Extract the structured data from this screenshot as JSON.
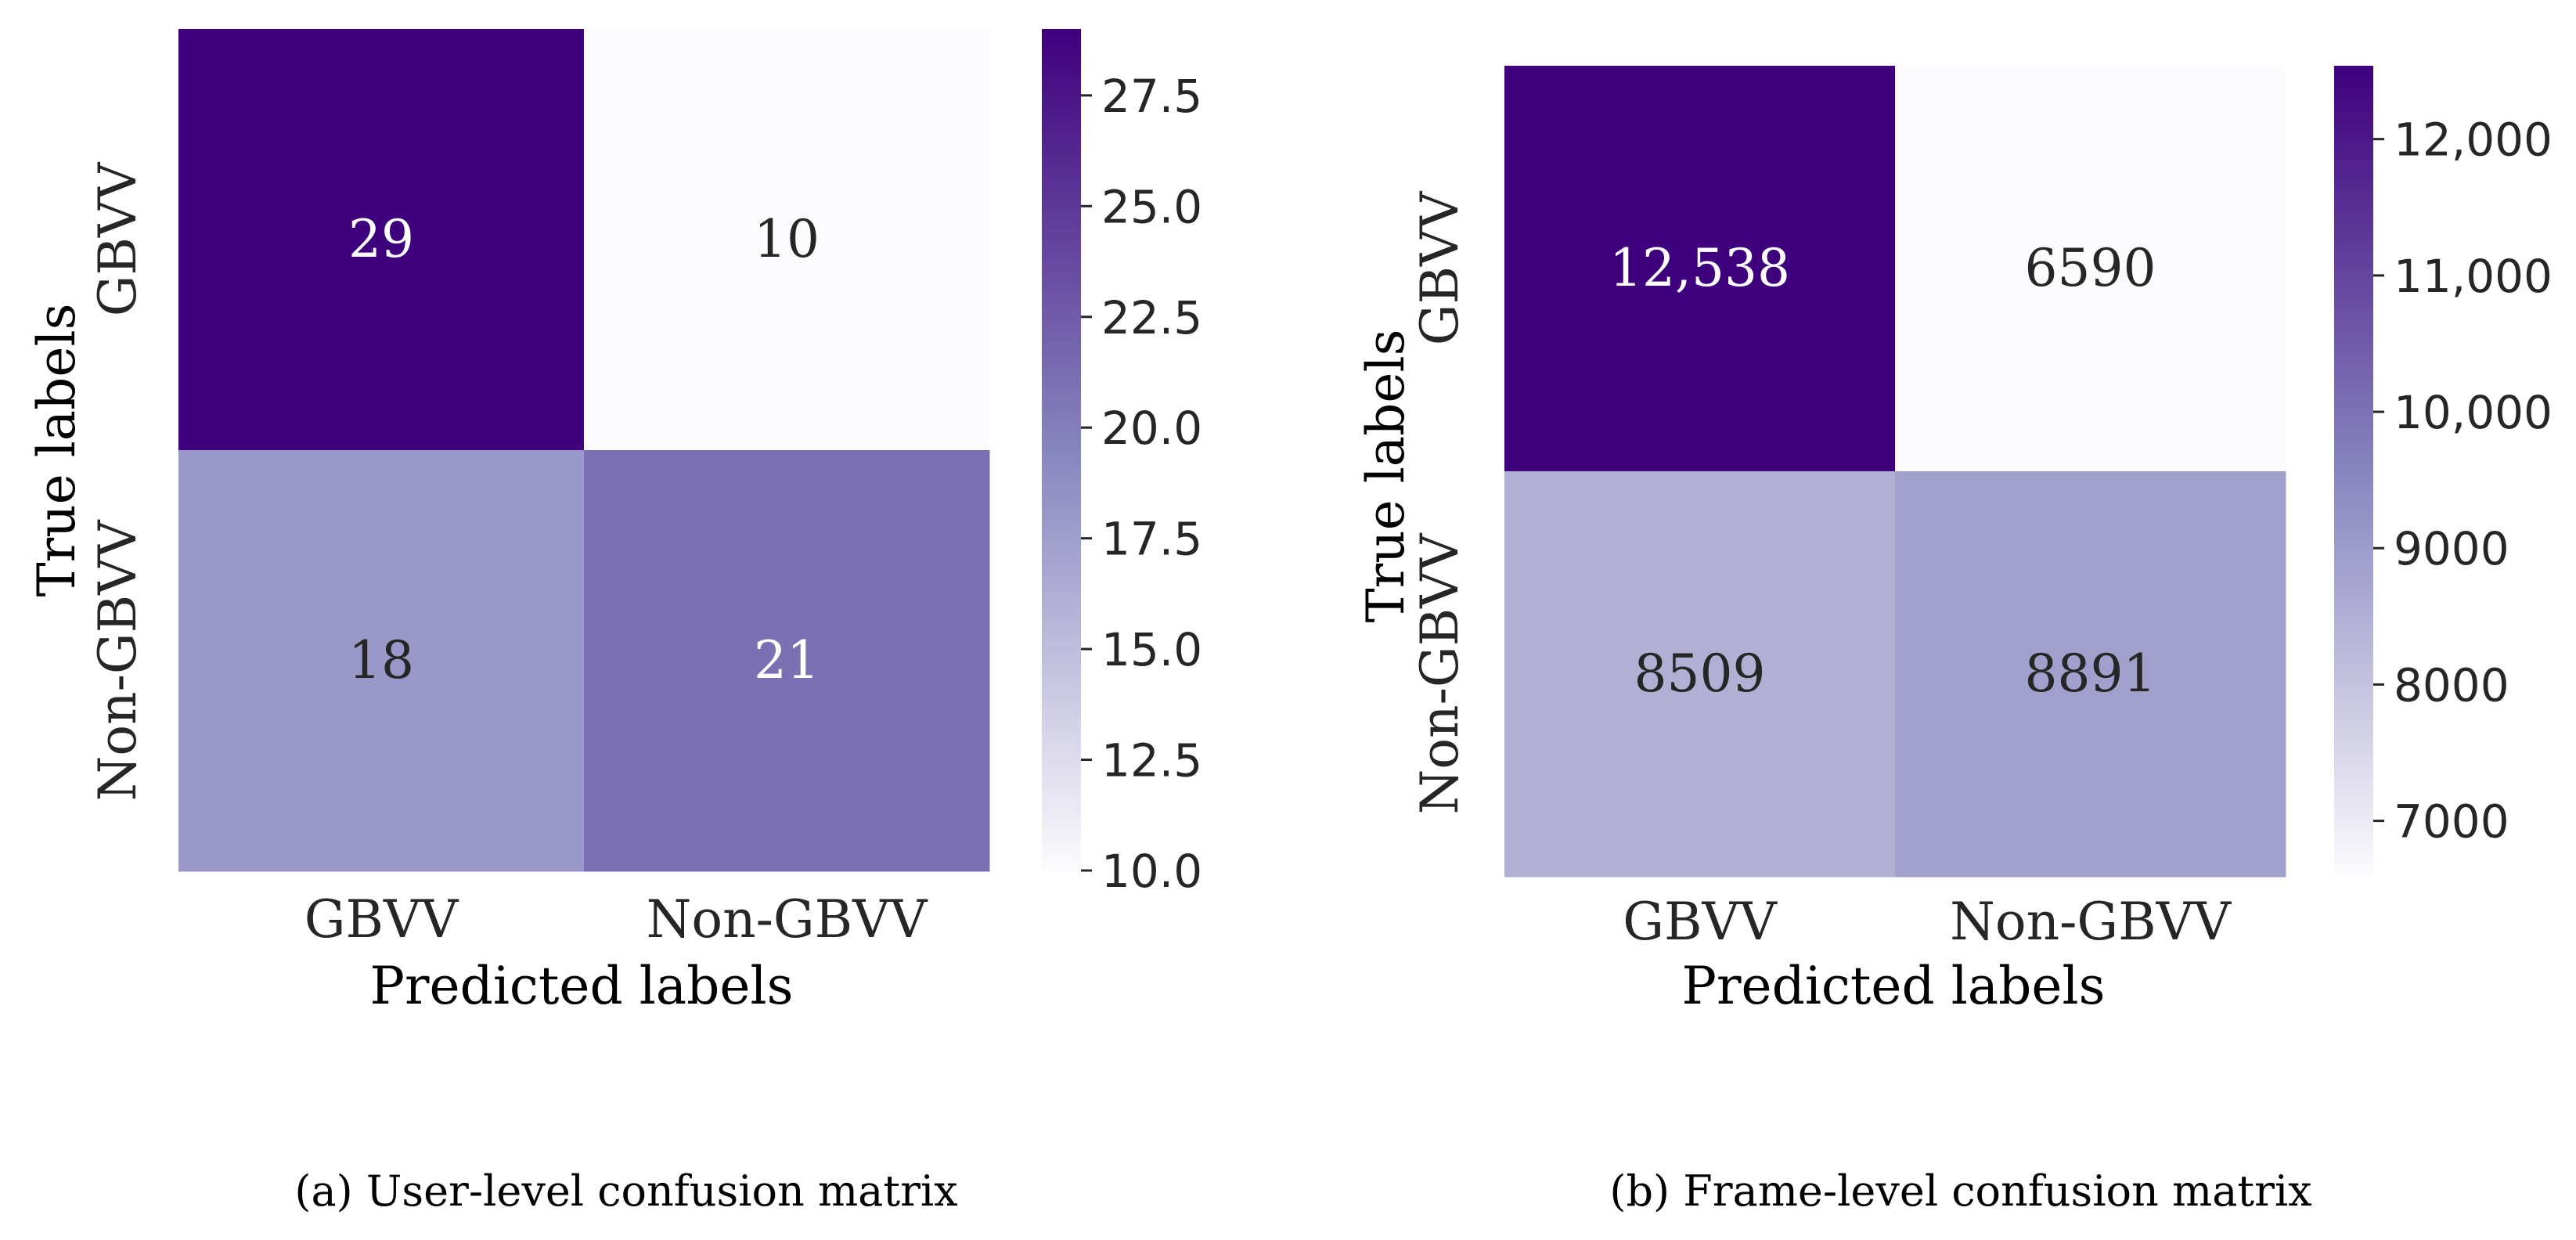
{
  "colors": {
    "cmap_low": "#fcfbfd",
    "cmap_mid": "#8785be",
    "cmap_high": "#3f007d",
    "text_dark": "#262626",
    "text_light": "#ffffff",
    "tick": "#262626"
  },
  "chart_data": [
    {
      "type": "heatmap",
      "caption": "(a) User-level confusion matrix",
      "xlabel": "Predicted labels",
      "ylabel": "True labels",
      "x_categories": [
        "GBVV",
        "Non-GBVV"
      ],
      "y_categories": [
        "GBVV",
        "Non-GBVV"
      ],
      "values": [
        [
          29,
          10
        ],
        [
          18,
          21
        ]
      ],
      "cell_labels": [
        [
          "29",
          "10"
        ],
        [
          "18",
          "21"
        ]
      ],
      "colorbar": {
        "min": 10,
        "max": 29,
        "ticks": [
          10.0,
          12.5,
          15.0,
          17.5,
          20.0,
          22.5,
          25.0,
          27.5
        ],
        "tick_labels": [
          "10.0",
          "12.5",
          "15.0",
          "17.5",
          "20.0",
          "22.5",
          "25.0",
          "27.5"
        ]
      }
    },
    {
      "type": "heatmap",
      "caption": "(b) Frame-level confusion matrix",
      "xlabel": "Predicted labels",
      "ylabel": "True labels",
      "x_categories": [
        "GBVV",
        "Non-GBVV"
      ],
      "y_categories": [
        "GBVV",
        "Non-GBVV"
      ],
      "values": [
        [
          12538,
          6590
        ],
        [
          8509,
          8891
        ]
      ],
      "cell_labels": [
        [
          "12,538",
          "6590"
        ],
        [
          "8509",
          "8891"
        ]
      ],
      "colorbar": {
        "min": 6590,
        "max": 12538,
        "ticks": [
          7000,
          8000,
          9000,
          10000,
          11000,
          12000
        ],
        "tick_labels": [
          "7000",
          "8000",
          "9000",
          "10,000",
          "11,000",
          "12,000"
        ]
      }
    }
  ]
}
